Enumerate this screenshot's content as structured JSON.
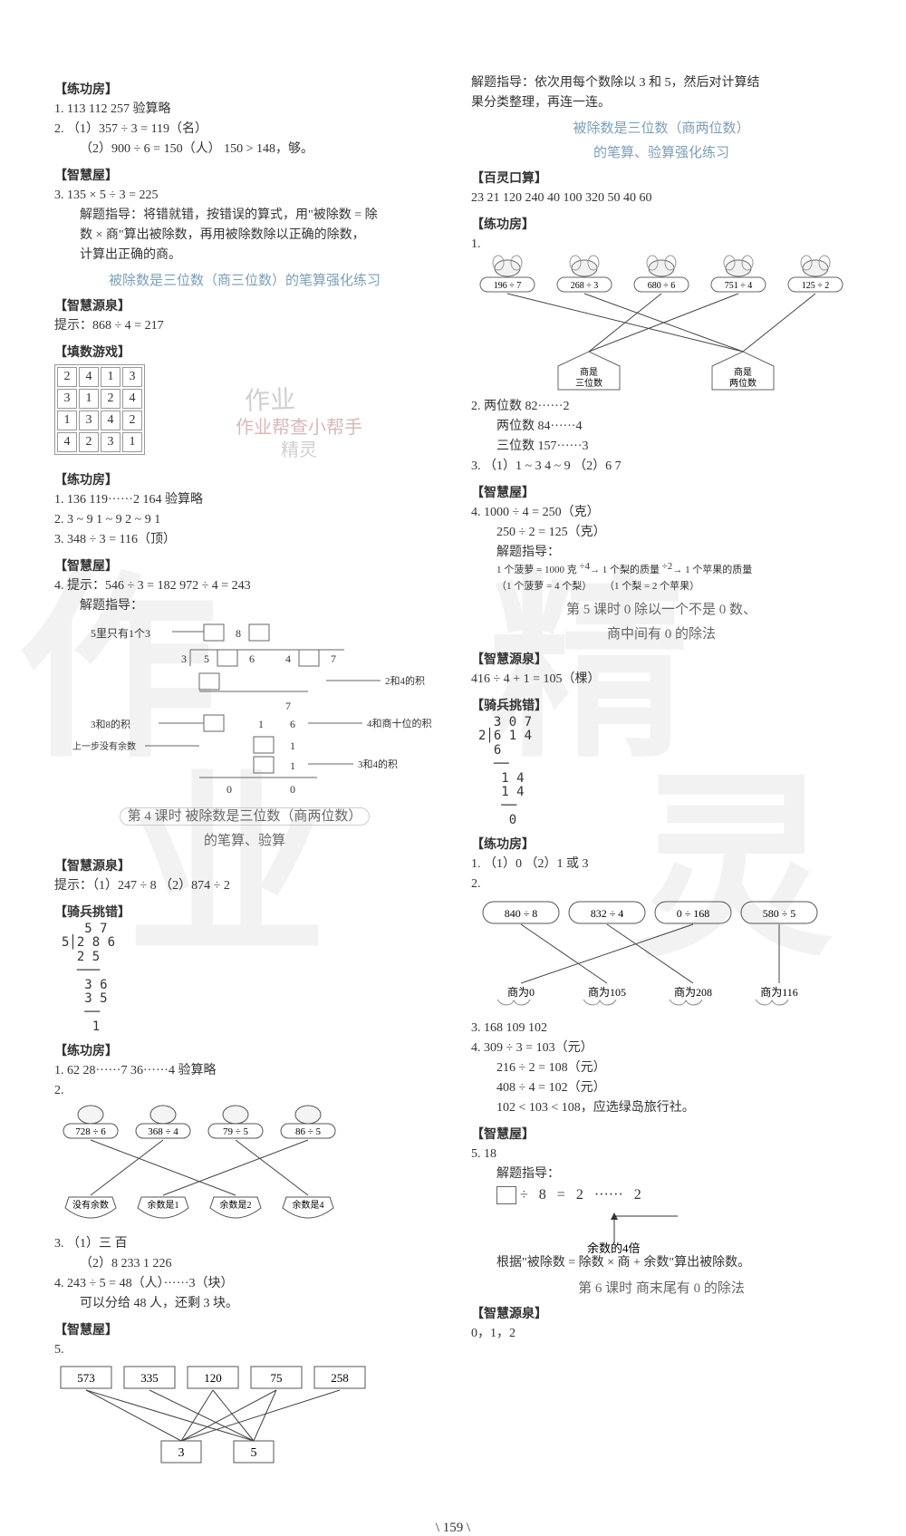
{
  "page_number": "\\ 159 \\",
  "watermarks": {
    "zuoye": "作业",
    "helper": "作业帮查小帮手",
    "jingling": "精灵"
  },
  "left": {
    "lgf1": {
      "head": "【练功房】",
      "l1": "1.  113   112   257   验算略",
      "l2": "2.  （1）357 ÷ 3 = 119（名）",
      "l3": "（2）900 ÷ 6 = 150（人）   150 > 148，够。"
    },
    "zhw1": {
      "head": "【智慧屋】",
      "l1": "3.  135 × 5 ÷ 3 = 225",
      "l2": "解题指导：将错就错，按错误的算式，用\"被除数 = 除",
      "l3": "数 × 商\"算出被除数，再用被除数除以正确的除数，",
      "l4": "计算出正确的商。"
    },
    "title1": "被除数是三位数（商三位数）的笔算强化练习",
    "zhy1": {
      "head": "【智慧源泉】",
      "l1": "提示：868 ÷ 4 = 217"
    },
    "tsx": {
      "head": "【填数游戏】",
      "grid": [
        [
          "2",
          "4",
          "1",
          "3"
        ],
        [
          "3",
          "1",
          "2",
          "4"
        ],
        [
          "1",
          "3",
          "4",
          "2"
        ],
        [
          "4",
          "2",
          "3",
          "1"
        ]
      ]
    },
    "lgf2": {
      "head": "【练功房】",
      "l1": "1.  136   119······2   164   验算略",
      "l2": "2.  3 ~ 9   1 ~ 9   2 ~ 9   1",
      "l3": "3.  348 ÷ 3 = 116（顶）"
    },
    "zhw2": {
      "head": "【智慧屋】",
      "l1": "4.  提示：546 ÷ 3 = 182   972 ÷ 4 = 243",
      "l2": "解题指导：",
      "diag": {
        "a1": "5里只有1个3",
        "b1": "8",
        "a2": "3",
        "a3": "5",
        "a4": "6",
        "a5": "4",
        "a6": "7",
        "c1": "2和4的积",
        "c2": "7",
        "d1": "3和8的积",
        "d2": "1",
        "d3": "6",
        "d4": "4和商十位的积",
        "e1": "上一步没有余数",
        "e2": "1",
        "f1": "1",
        "f2": "3和4的积",
        "g1": "0",
        "g2": "0"
      }
    },
    "title2a": "第 4 课时   被除数是三位数（商两位数）",
    "title2b": "的笔算、验算",
    "zhy2": {
      "head": "【智慧源泉】",
      "l1": "提示：（1）247 ÷ 8   （2）874 ÷ 2"
    },
    "qbt": {
      "head": "【骑兵挑错】",
      "div": "   5 7\n5│2 8 6\n  2 5\n  ───\n   3 6\n   3 5\n   ──\n    1"
    },
    "lgf3": {
      "head": "【练功房】",
      "l1": "1.  62   28······7   36······4   验算略",
      "l2": "2.",
      "apples": [
        "728 ÷ 6",
        "368 ÷ 4",
        "79 ÷ 5",
        "86 ÷ 5"
      ],
      "baskets": [
        "没有余数",
        "余数是1",
        "余数是2",
        "余数是4"
      ],
      "edges": [
        [
          0,
          2
        ],
        [
          1,
          0
        ],
        [
          2,
          3
        ],
        [
          3,
          1
        ]
      ],
      "l3": "3.  （1）三   百",
      "l4": "（2）8   233   1   226",
      "l5": "4.  243 ÷ 5 = 48（人）······3（块）",
      "l6": "可以分给 48 人，还剩 3 块。"
    },
    "zhw3": {
      "head": "【智慧屋】",
      "l1": "5.",
      "tops": [
        "573",
        "335",
        "120",
        "75",
        "258"
      ],
      "bots": [
        "3",
        "5"
      ]
    }
  },
  "right": {
    "intro": "解题指导：依次用每个数除以 3 和 5，然后对计算结",
    "intro2": "果分类整理，再连一连。",
    "title3a": "被除数是三位数（商两位数）",
    "title3b": "的笔算、验算强化练习",
    "bls": {
      "head": "【百灵口算】",
      "nums": "23   21   120   240   40   100   320   50   40   60"
    },
    "lgf4": {
      "head": "【练功房】",
      "l1": "1.",
      "bees": [
        "196 ÷ 7",
        "268 ÷ 3",
        "680 ÷ 6",
        "751 ÷ 4",
        "125 ÷ 2"
      ],
      "houses": [
        "商是\n三位数",
        "商是\n两位数"
      ],
      "edges": [
        [
          0,
          1
        ],
        [
          1,
          1
        ],
        [
          2,
          0
        ],
        [
          3,
          0
        ],
        [
          4,
          1
        ]
      ],
      "l2": "2.  两位数   82······2",
      "l3": "两位数   84······4",
      "l4": "三位数   157······3",
      "l5": "3.  （1）1 ~ 3   4 ~ 9   （2）6   7"
    },
    "zhw4": {
      "head": "【智慧屋】",
      "l1": "4.  1000 ÷ 4 = 250（克）",
      "l2": "250 ÷ 2 = 125（克）",
      "l3": "解题指导：",
      "l4a": "1 个菠萝 = 1000 克",
      "l4b": "÷4",
      "l4c": "1 个梨的质量",
      "l4d": "÷2",
      "l4e": "1 个苹果的质量",
      "l5a": "（1 个菠萝 = 4 个梨）",
      "l5b": "（1 个梨 = 2 个苹果）"
    },
    "title4a": "第 5 课时   0 除以一个不是 0 数、",
    "title4b": "商中间有 0 的除法",
    "zhy3": {
      "head": "【智慧源泉】",
      "l1": "416 ÷ 4 + 1 = 105（棵）"
    },
    "qbt2": {
      "head": "【骑兵挑错】",
      "div": "  3 0 7\n2│6 1 4\n  6\n  ──\n   1 4\n   1 4\n   ──\n    0"
    },
    "lgf5": {
      "head": "【练功房】",
      "l1": "1.  （1）0   （2）1 或 3",
      "l2": "2.",
      "tops": [
        "840 ÷ 8",
        "832 ÷ 4",
        "0 ÷ 168",
        "580 ÷ 5"
      ],
      "bots": [
        "商为0",
        "商为105",
        "商为208",
        "商为116"
      ],
      "edges": [
        [
          0,
          1
        ],
        [
          1,
          2
        ],
        [
          2,
          0
        ],
        [
          3,
          3
        ]
      ],
      "l3": "3.  168   109   102",
      "l4": "4.  309 ÷ 3 = 103（元）",
      "l5": "216 ÷ 2 = 108（元）",
      "l6": "408 ÷ 4 = 102（元）",
      "l7": "102 < 103 < 108，应选绿岛旅行社。"
    },
    "zhw5": {
      "head": "【智慧屋】",
      "l1": "5.  18",
      "l2": "解题指导：",
      "eq": {
        "box": "",
        "d": "÷",
        "n8": "8",
        "e": "=",
        "n2a": "2",
        "dots": "······",
        "n2b": "2"
      },
      "arrow": "余数的4倍",
      "l3": "根据\"被除数 = 除数 × 商 + 余数\"算出被除数。"
    },
    "title5": "第 6 课时   商末尾有 0 的除法",
    "zhy4": {
      "head": "【智慧源泉】",
      "l1": "0，1，2"
    }
  },
  "colors": {
    "section_blue": "#6b8fa8",
    "text": "#333333",
    "faint": "#888888"
  },
  "svg": {
    "apple_fill": "#f4f4f4",
    "apple_stroke": "#555",
    "basket_stroke": "#555",
    "line": "#444",
    "bee_body": "#f2f2f2",
    "house_stroke": "#666"
  }
}
